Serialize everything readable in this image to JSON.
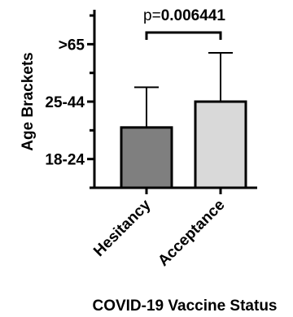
{
  "chart_data": {
    "type": "bar",
    "title": "",
    "xlabel": "COVID-19 Vaccine Status",
    "ylabel": "Age Brackets",
    "categories": [
      "Hesitancy",
      "Acceptance"
    ],
    "values": [
      1.55,
      2.0
    ],
    "error_upper": [
      2.25,
      2.85
    ],
    "ylim": [
      0.5,
      3.6
    ],
    "yticks": [
      {
        "value": 1,
        "label": "18-24"
      },
      {
        "value": 2,
        "label": "25-44"
      },
      {
        "value": 3,
        "label": ">65"
      }
    ],
    "bar_colors": [
      "#7f7f7f",
      "#d9d9d9"
    ],
    "significance": {
      "prefix": "p=",
      "value": "0.006441"
    },
    "grid": false,
    "legend": "none"
  }
}
